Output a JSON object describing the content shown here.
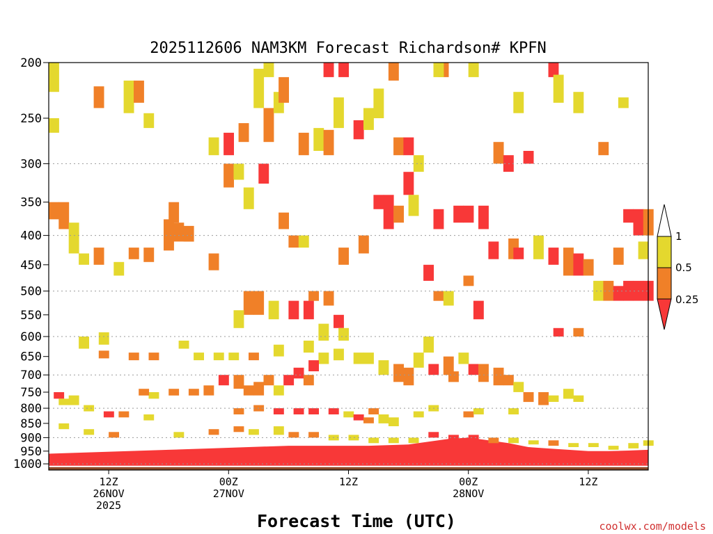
{
  "chart_data": {
    "type": "heatmap",
    "title": "2025112606 NAM3KM Forecast Richardson# KPFN",
    "xlabel": "Forecast Time (UTC)",
    "ylabel": "",
    "credit": "coolwx.com/models",
    "x_range_hours": [
      0,
      60
    ],
    "y_range_hpa": [
      1025,
      200
    ],
    "y_scale": "log-pressure",
    "grid": "dotted horizontal at 300,400,500,600,700,800,900,1000",
    "y_ticks": [
      {
        "value": 200,
        "label": "200"
      },
      {
        "value": 250,
        "label": "250"
      },
      {
        "value": 300,
        "label": "300"
      },
      {
        "value": 350,
        "label": "350"
      },
      {
        "value": 400,
        "label": "400"
      },
      {
        "value": 450,
        "label": "450"
      },
      {
        "value": 500,
        "label": "500"
      },
      {
        "value": 550,
        "label": "550"
      },
      {
        "value": 600,
        "label": "600"
      },
      {
        "value": 650,
        "label": "650"
      },
      {
        "value": 700,
        "label": "700"
      },
      {
        "value": 750,
        "label": "750"
      },
      {
        "value": 800,
        "label": "800"
      },
      {
        "value": 850,
        "label": "850"
      },
      {
        "value": 900,
        "label": "900"
      },
      {
        "value": 950,
        "label": "950"
      },
      {
        "value": 1000,
        "label": "1000"
      }
    ],
    "x_ticks": [
      {
        "value": 6,
        "lines": [
          "12Z",
          "26NOV",
          "2025"
        ]
      },
      {
        "value": 18,
        "lines": [
          "00Z",
          "27NOV"
        ]
      },
      {
        "value": 30,
        "lines": [
          "12Z"
        ]
      },
      {
        "value": 42,
        "lines": [
          "00Z",
          "28NOV"
        ]
      },
      {
        "value": 54,
        "lines": [
          "12Z"
        ]
      }
    ],
    "colorbar": {
      "levels": [
        {
          "label": "1"
        },
        {
          "label": "0.5"
        },
        {
          "label": "0.25"
        }
      ],
      "colors": {
        "above_1": "#ffffff",
        "0.5_to_1": "#e4d82e",
        "0.25_to_0.5": "#f08028",
        "below_0.25": "#f83838",
        "ground": "#8b4a28"
      }
    },
    "cells": [
      [
        0.0,
        200,
        225,
        "y"
      ],
      [
        4.5,
        220,
        240,
        "o"
      ],
      [
        7.5,
        215,
        245,
        "y"
      ],
      [
        8.5,
        215,
        235,
        "o"
      ],
      [
        9.5,
        245,
        260,
        "y"
      ],
      [
        0.0,
        250,
        265,
        "y"
      ],
      [
        16.0,
        270,
        290,
        "y"
      ],
      [
        17.5,
        265,
        290,
        "r"
      ],
      [
        19.0,
        255,
        275,
        "o"
      ],
      [
        21.5,
        240,
        275,
        "o"
      ],
      [
        22.5,
        225,
        245,
        "y"
      ],
      [
        20.5,
        205,
        240,
        "y"
      ],
      [
        21.5,
        200,
        212,
        "y"
      ],
      [
        23.0,
        212,
        235,
        "o"
      ],
      [
        25.0,
        265,
        290,
        "o"
      ],
      [
        26.5,
        260,
        285,
        "y"
      ],
      [
        27.5,
        262,
        290,
        "o"
      ],
      [
        28.5,
        230,
        260,
        "y"
      ],
      [
        27.5,
        200,
        212,
        "r"
      ],
      [
        29.0,
        200,
        212,
        "r"
      ],
      [
        30.5,
        252,
        272,
        "r"
      ],
      [
        31.5,
        240,
        262,
        "y"
      ],
      [
        32.5,
        222,
        250,
        "y"
      ],
      [
        34.0,
        200,
        215,
        "o"
      ],
      [
        34.5,
        270,
        290,
        "o"
      ],
      [
        35.5,
        270,
        290,
        "r"
      ],
      [
        36.5,
        290,
        310,
        "y"
      ],
      [
        39.0,
        200,
        212,
        "o"
      ],
      [
        38.5,
        200,
        212,
        "y"
      ],
      [
        42.0,
        200,
        212,
        "y"
      ],
      [
        44.5,
        275,
        300,
        "o"
      ],
      [
        45.5,
        290,
        310,
        "r"
      ],
      [
        46.5,
        225,
        245,
        "y"
      ],
      [
        47.5,
        285,
        300,
        "r"
      ],
      [
        50.0,
        200,
        212,
        "r"
      ],
      [
        50.5,
        210,
        235,
        "y"
      ],
      [
        52.5,
        225,
        245,
        "y"
      ],
      [
        55.0,
        275,
        290,
        "o"
      ],
      [
        57.0,
        230,
        240,
        "y"
      ],
      [
        1.0,
        350,
        390,
        "o"
      ],
      [
        0.0,
        350,
        375,
        "o"
      ],
      [
        2.0,
        380,
        430,
        "y"
      ],
      [
        3.0,
        430,
        450,
        "y"
      ],
      [
        4.5,
        420,
        450,
        "o"
      ],
      [
        6.5,
        445,
        470,
        "y"
      ],
      [
        8.0,
        420,
        440,
        "o"
      ],
      [
        9.5,
        420,
        445,
        "o"
      ],
      [
        11.5,
        375,
        425,
        "o"
      ],
      [
        12.5,
        380,
        410,
        "o"
      ],
      [
        13.5,
        385,
        410,
        "o"
      ],
      [
        12.0,
        350,
        380,
        "o"
      ],
      [
        16.0,
        430,
        460,
        "o"
      ],
      [
        17.5,
        300,
        330,
        "o"
      ],
      [
        18.5,
        300,
        320,
        "y"
      ],
      [
        19.5,
        330,
        360,
        "y"
      ],
      [
        21.0,
        300,
        325,
        "r"
      ],
      [
        23.0,
        365,
        390,
        "o"
      ],
      [
        24.0,
        400,
        420,
        "o"
      ],
      [
        25.0,
        400,
        420,
        "y"
      ],
      [
        26.0,
        500,
        520,
        "o"
      ],
      [
        27.5,
        500,
        530,
        "o"
      ],
      [
        28.5,
        550,
        580,
        "r"
      ],
      [
        29.0,
        420,
        450,
        "o"
      ],
      [
        31.0,
        400,
        430,
        "o"
      ],
      [
        32.5,
        340,
        360,
        "r"
      ],
      [
        33.5,
        340,
        390,
        "r"
      ],
      [
        34.5,
        355,
        380,
        "o"
      ],
      [
        35.5,
        310,
        340,
        "r"
      ],
      [
        36.0,
        340,
        370,
        "y"
      ],
      [
        38.5,
        360,
        390,
        "r"
      ],
      [
        40.5,
        355,
        380,
        "r"
      ],
      [
        41.5,
        355,
        380,
        "r"
      ],
      [
        43.0,
        355,
        390,
        "r"
      ],
      [
        44.0,
        410,
        440,
        "r"
      ],
      [
        46.0,
        405,
        440,
        "o"
      ],
      [
        46.5,
        420,
        440,
        "r"
      ],
      [
        48.5,
        400,
        440,
        "y"
      ],
      [
        50.0,
        420,
        450,
        "r"
      ],
      [
        51.5,
        420,
        470,
        "o"
      ],
      [
        52.5,
        430,
        470,
        "r"
      ],
      [
        53.5,
        440,
        470,
        "o"
      ],
      [
        54.5,
        480,
        520,
        "y"
      ],
      [
        55.5,
        480,
        520,
        "o"
      ],
      [
        56.5,
        490,
        520,
        "r"
      ],
      [
        57.5,
        480,
        520,
        "r"
      ],
      [
        58.5,
        480,
        520,
        "r"
      ],
      [
        59.5,
        480,
        520,
        "r"
      ],
      [
        57.5,
        360,
        380,
        "r"
      ],
      [
        58.5,
        360,
        400,
        "r"
      ],
      [
        59.5,
        360,
        400,
        "o"
      ],
      [
        59.0,
        410,
        440,
        "y"
      ],
      [
        56.5,
        420,
        450,
        "o"
      ],
      [
        52.5,
        580,
        600,
        "o"
      ],
      [
        50.5,
        580,
        600,
        "r"
      ],
      [
        37.5,
        450,
        480,
        "r"
      ],
      [
        38.5,
        500,
        520,
        "o"
      ],
      [
        39.5,
        500,
        530,
        "y"
      ],
      [
        42.5,
        520,
        560,
        "r"
      ],
      [
        41.5,
        470,
        490,
        "o"
      ],
      [
        19.5,
        500,
        550,
        "o"
      ],
      [
        20.5,
        500,
        550,
        "o"
      ],
      [
        22.0,
        520,
        560,
        "y"
      ],
      [
        24.0,
        520,
        560,
        "r"
      ],
      [
        25.5,
        520,
        560,
        "r"
      ],
      [
        27.0,
        570,
        610,
        "y"
      ],
      [
        29.0,
        580,
        610,
        "y"
      ],
      [
        18.5,
        540,
        580,
        "y"
      ],
      [
        3.0,
        600,
        630,
        "y"
      ],
      [
        5.0,
        590,
        620,
        "y"
      ],
      [
        5.0,
        635,
        655,
        "o"
      ],
      [
        8.0,
        640,
        660,
        "o"
      ],
      [
        10.0,
        640,
        660,
        "o"
      ],
      [
        13.0,
        610,
        630,
        "y"
      ],
      [
        14.5,
        640,
        660,
        "y"
      ],
      [
        16.5,
        640,
        660,
        "y"
      ],
      [
        18.0,
        640,
        660,
        "y"
      ],
      [
        20.0,
        640,
        660,
        "o"
      ],
      [
        22.5,
        620,
        650,
        "y"
      ],
      [
        25.5,
        610,
        640,
        "y"
      ],
      [
        27.0,
        640,
        670,
        "y"
      ],
      [
        28.5,
        630,
        660,
        "y"
      ],
      [
        30.5,
        640,
        670,
        "y"
      ],
      [
        31.5,
        640,
        670,
        "y"
      ],
      [
        33.0,
        660,
        700,
        "y"
      ],
      [
        34.5,
        670,
        720,
        "o"
      ],
      [
        35.5,
        680,
        730,
        "o"
      ],
      [
        36.5,
        640,
        680,
        "y"
      ],
      [
        37.5,
        600,
        640,
        "y"
      ],
      [
        38.0,
        670,
        700,
        "r"
      ],
      [
        39.5,
        650,
        700,
        "o"
      ],
      [
        40.0,
        690,
        720,
        "o"
      ],
      [
        41.0,
        640,
        670,
        "y"
      ],
      [
        42.0,
        670,
        700,
        "r"
      ],
      [
        43.0,
        670,
        720,
        "o"
      ],
      [
        44.5,
        680,
        730,
        "o"
      ],
      [
        45.5,
        700,
        730,
        "o"
      ],
      [
        46.5,
        720,
        750,
        "y"
      ],
      [
        47.5,
        750,
        780,
        "o"
      ],
      [
        49.0,
        750,
        790,
        "o"
      ],
      [
        50.0,
        760,
        780,
        "y"
      ],
      [
        51.5,
        740,
        770,
        "y"
      ],
      [
        52.5,
        760,
        780,
        "y"
      ],
      [
        17.0,
        700,
        730,
        "r"
      ],
      [
        18.5,
        700,
        740,
        "o"
      ],
      [
        19.5,
        730,
        760,
        "o"
      ],
      [
        20.5,
        720,
        760,
        "o"
      ],
      [
        21.5,
        700,
        730,
        "o"
      ],
      [
        22.5,
        730,
        760,
        "y"
      ],
      [
        23.5,
        700,
        730,
        "r"
      ],
      [
        24.5,
        680,
        710,
        "r"
      ],
      [
        25.5,
        700,
        730,
        "o"
      ],
      [
        26.0,
        660,
        690,
        "r"
      ],
      [
        15.5,
        730,
        760,
        "o"
      ],
      [
        14.0,
        740,
        760,
        "o"
      ],
      [
        12.0,
        740,
        760,
        "o"
      ],
      [
        10.0,
        750,
        770,
        "y"
      ],
      [
        9.0,
        740,
        760,
        "o"
      ],
      [
        0.5,
        750,
        770,
        "r"
      ],
      [
        1.0,
        770,
        790,
        "y"
      ],
      [
        2.0,
        760,
        790,
        "y"
      ],
      [
        3.5,
        790,
        810,
        "y"
      ],
      [
        5.5,
        810,
        830,
        "r"
      ],
      [
        7.0,
        810,
        830,
        "o"
      ],
      [
        9.5,
        820,
        840,
        "y"
      ],
      [
        18.5,
        800,
        820,
        "o"
      ],
      [
        20.5,
        790,
        810,
        "o"
      ],
      [
        22.5,
        800,
        820,
        "r"
      ],
      [
        24.5,
        800,
        820,
        "r"
      ],
      [
        26.0,
        800,
        820,
        "r"
      ],
      [
        28.0,
        800,
        820,
        "r"
      ],
      [
        29.5,
        810,
        830,
        "y"
      ],
      [
        30.5,
        820,
        840,
        "r"
      ],
      [
        31.5,
        830,
        850,
        "o"
      ],
      [
        32.0,
        800,
        820,
        "o"
      ],
      [
        33.0,
        820,
        850,
        "y"
      ],
      [
        34.0,
        830,
        860,
        "y"
      ],
      [
        36.5,
        810,
        830,
        "y"
      ],
      [
        38.0,
        790,
        810,
        "y"
      ],
      [
        41.5,
        810,
        830,
        "o"
      ],
      [
        42.5,
        800,
        820,
        "y"
      ],
      [
        46.0,
        800,
        820,
        "y"
      ],
      [
        1.0,
        850,
        870,
        "y"
      ],
      [
        3.5,
        870,
        890,
        "y"
      ],
      [
        6.0,
        880,
        900,
        "o"
      ],
      [
        12.5,
        880,
        900,
        "y"
      ],
      [
        16.0,
        870,
        890,
        "o"
      ],
      [
        18.5,
        860,
        880,
        "o"
      ],
      [
        20.0,
        870,
        890,
        "y"
      ],
      [
        22.5,
        860,
        890,
        "y"
      ],
      [
        24.0,
        880,
        900,
        "o"
      ],
      [
        26.0,
        880,
        900,
        "o"
      ],
      [
        28.0,
        890,
        910,
        "y"
      ],
      [
        30.0,
        890,
        910,
        "y"
      ],
      [
        32.0,
        900,
        920,
        "y"
      ],
      [
        34.0,
        900,
        920,
        "y"
      ],
      [
        36.0,
        900,
        920,
        "y"
      ],
      [
        38.0,
        880,
        900,
        "r"
      ],
      [
        40.0,
        890,
        910,
        "r"
      ],
      [
        42.0,
        890,
        910,
        "r"
      ],
      [
        44.0,
        900,
        920,
        "o"
      ],
      [
        46.0,
        900,
        920,
        "y"
      ],
      [
        48.0,
        910,
        925,
        "y"
      ],
      [
        50.0,
        910,
        930,
        "o"
      ],
      [
        52.0,
        920,
        935,
        "y"
      ],
      [
        54.0,
        920,
        935,
        "y"
      ],
      [
        56.0,
        930,
        945,
        "y"
      ],
      [
        58.0,
        920,
        940,
        "y"
      ],
      [
        59.5,
        910,
        930,
        "y"
      ]
    ],
    "surface_profile": [
      [
        0,
        960
      ],
      [
        4,
        955
      ],
      [
        8,
        950
      ],
      [
        12,
        945
      ],
      [
        16,
        940
      ],
      [
        20,
        935
      ],
      [
        24,
        930
      ],
      [
        28,
        930
      ],
      [
        32,
        930
      ],
      [
        36,
        925
      ],
      [
        38,
        915
      ],
      [
        40,
        905
      ],
      [
        42,
        900
      ],
      [
        44,
        910
      ],
      [
        46,
        920
      ],
      [
        48,
        935
      ],
      [
        50,
        940
      ],
      [
        52,
        945
      ],
      [
        54,
        950
      ],
      [
        56,
        950
      ],
      [
        58,
        948
      ],
      [
        60,
        945
      ]
    ]
  }
}
